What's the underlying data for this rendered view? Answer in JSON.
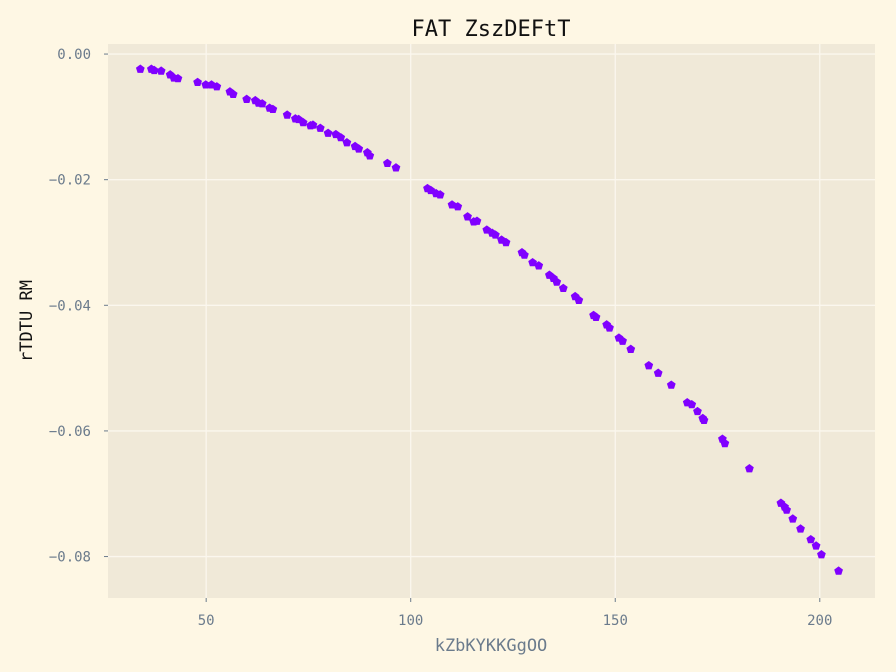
{
  "chart_data": {
    "type": "scatter",
    "title": "FAT ZszDEFtT",
    "xlabel": "kZbKYKKGgOO",
    "ylabel": "rTDTU RM",
    "xlim": [
      26,
      213.5
    ],
    "ylim": [
      -0.0866,
      0.0016
    ],
    "xticks": [
      50,
      100,
      150,
      200
    ],
    "xtick_labels": [
      "50",
      "100",
      "150",
      "200"
    ],
    "yticks": [
      0.0,
      -0.02,
      -0.04,
      -0.06,
      -0.08
    ],
    "ytick_labels": [
      "0.00",
      "−0.02",
      "−0.04",
      "−0.06",
      "−0.08"
    ],
    "grid": true,
    "legend": "none",
    "marker": "pentagon",
    "colors": {
      "background": "#fef7e4",
      "plot_area": "#f0e9d8",
      "grid": "#fbf7ee",
      "marker": "#8000ff",
      "text": "#6b7b8c",
      "title": "#111111"
    },
    "x": [
      33.9,
      36.6,
      37.3,
      39.0,
      41.2,
      42.1,
      43.1,
      47.9,
      49.9,
      51.3,
      52.6,
      55.8,
      56.6,
      59.9,
      62.0,
      62.8,
      63.7,
      65.5,
      66.3,
      69.8,
      71.8,
      72.6,
      73.7,
      75.5,
      76.1,
      77.9,
      79.8,
      81.7,
      82.9,
      84.4,
      86.4,
      87.3,
      89.4,
      90.0,
      94.3,
      96.4,
      104.1,
      104.9,
      106.2,
      107.2,
      110.1,
      111.5,
      113.9,
      115.4,
      116.2,
      118.6,
      119.9,
      120.7,
      122.2,
      123.3,
      127.2,
      127.8,
      129.8,
      131.3,
      133.9,
      134.9,
      135.7,
      137.3,
      140.2,
      141.1,
      144.7,
      145.3,
      147.9,
      148.6,
      150.9,
      151.8,
      153.8,
      158.2,
      160.5,
      163.7,
      167.6,
      168.7,
      170.1,
      171.4,
      171.7,
      176.2,
      176.8,
      182.8,
      190.5,
      191.4,
      191.9,
      193.4,
      195.3,
      197.8,
      199.1,
      200.4,
      204.6
    ],
    "y": [
      -0.0024,
      -0.0024,
      -0.0026,
      -0.0027,
      -0.0033,
      -0.0038,
      -0.0039,
      -0.0045,
      -0.0049,
      -0.0049,
      -0.0052,
      -0.006,
      -0.0064,
      -0.0072,
      -0.0074,
      -0.0078,
      -0.0079,
      -0.0086,
      -0.0088,
      -0.0097,
      -0.0103,
      -0.0104,
      -0.0109,
      -0.0114,
      -0.0113,
      -0.0118,
      -0.0126,
      -0.0128,
      -0.0133,
      -0.0141,
      -0.0147,
      -0.0151,
      -0.0157,
      -0.0162,
      -0.0174,
      -0.0181,
      -0.0214,
      -0.0217,
      -0.0222,
      -0.0224,
      -0.024,
      -0.0243,
      -0.0259,
      -0.0267,
      -0.0266,
      -0.028,
      -0.0285,
      -0.0288,
      -0.0296,
      -0.03,
      -0.0316,
      -0.032,
      -0.0332,
      -0.0337,
      -0.0352,
      -0.0357,
      -0.0363,
      -0.0373,
      -0.0386,
      -0.0392,
      -0.0416,
      -0.0419,
      -0.0431,
      -0.0436,
      -0.0452,
      -0.0457,
      -0.047,
      -0.0496,
      -0.0508,
      -0.0527,
      -0.0555,
      -0.0558,
      -0.0569,
      -0.058,
      -0.0583,
      -0.0613,
      -0.062,
      -0.066,
      -0.0715,
      -0.0721,
      -0.0726,
      -0.074,
      -0.0756,
      -0.0773,
      -0.0783,
      -0.0797,
      -0.0823
    ]
  }
}
